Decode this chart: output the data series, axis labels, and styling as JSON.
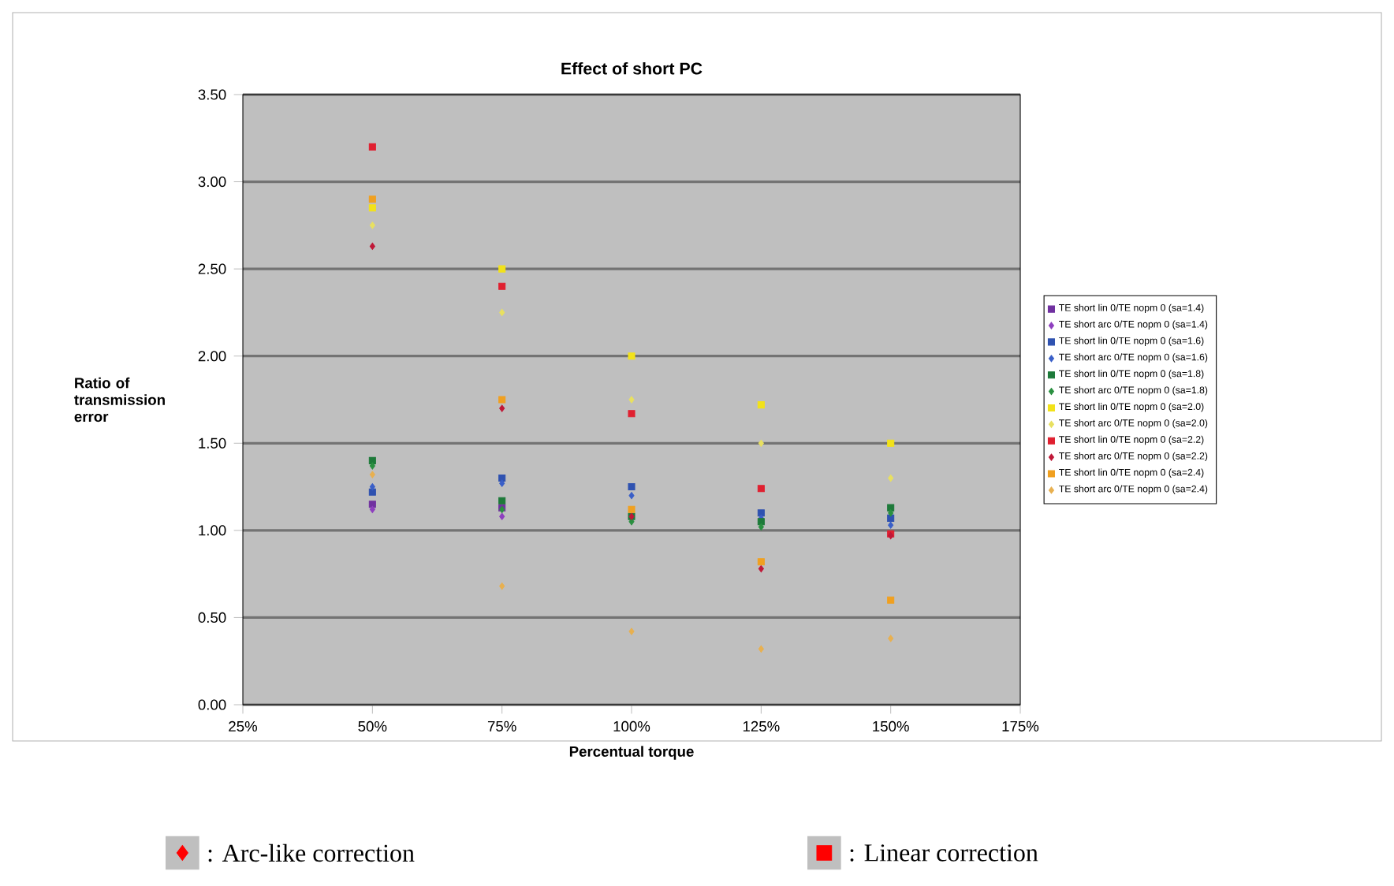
{
  "chart_data": {
    "type": "scatter",
    "title": "Effect of short PC",
    "xlabel": "Percentual torque",
    "ylabel": "Ratio of transmission error",
    "x": [
      50,
      75,
      100,
      125,
      150
    ],
    "xlim": [
      25,
      175
    ],
    "xticks": [
      {
        "value": 25,
        "label": "25%"
      },
      {
        "value": 50,
        "label": "50%"
      },
      {
        "value": 75,
        "label": "75%"
      },
      {
        "value": 100,
        "label": "100%"
      },
      {
        "value": 125,
        "label": "125%"
      },
      {
        "value": 150,
        "label": "150%"
      },
      {
        "value": 175,
        "label": "175%"
      }
    ],
    "ylim": [
      0,
      3.5
    ],
    "yticks": [
      {
        "value": 0,
        "label": "0.00"
      },
      {
        "value": 0.5,
        "label": "0.50"
      },
      {
        "value": 1,
        "label": "1.00"
      },
      {
        "value": 1.5,
        "label": "1.50"
      },
      {
        "value": 2,
        "label": "2.00"
      },
      {
        "value": 2.5,
        "label": "2.50"
      },
      {
        "value": 3,
        "label": "3.00"
      },
      {
        "value": 3.5,
        "label": "3.50"
      }
    ],
    "grid": "y",
    "legend": "right",
    "series": [
      {
        "name": "TE short lin 0/TE nopm 0 (sa=1.4)",
        "color": "#7030a0",
        "marker": "square",
        "values": [
          1.15,
          1.13,
          null,
          null,
          null
        ]
      },
      {
        "name": "TE short arc 0/TE nopm 0 (sa=1.4)",
        "color": "#8e3fbf",
        "marker": "diamond",
        "values": [
          1.12,
          1.08,
          null,
          null,
          null
        ]
      },
      {
        "name": "TE short lin 0/TE nopm 0 (sa=1.6)",
        "color": "#2f52b0",
        "marker": "square",
        "values": [
          1.22,
          1.3,
          1.25,
          1.1,
          1.07
        ]
      },
      {
        "name": "TE short arc 0/TE nopm 0 (sa=1.6)",
        "color": "#3a5fc8",
        "marker": "diamond",
        "values": [
          1.25,
          1.27,
          1.2,
          1.07,
          1.03
        ]
      },
      {
        "name": "TE short lin 0/TE nopm 0 (sa=1.8)",
        "color": "#1e7a3a",
        "marker": "square",
        "values": [
          1.4,
          1.17,
          1.08,
          1.05,
          1.13
        ]
      },
      {
        "name": "TE short arc 0/TE nopm 0 (sa=1.8)",
        "color": "#2a9040",
        "marker": "diamond",
        "values": [
          1.37,
          1.12,
          1.05,
          1.02,
          1.1
        ]
      },
      {
        "name": "TE short lin 0/TE nopm 0 (sa=2.0)",
        "color": "#f2e21a",
        "marker": "square",
        "values": [
          2.85,
          2.5,
          2.0,
          1.72,
          1.5
        ]
      },
      {
        "name": "TE short arc 0/TE nopm 0 (sa=2.0)",
        "color": "#e8e060",
        "marker": "diamond",
        "values": [
          2.75,
          2.25,
          1.75,
          1.5,
          1.3
        ]
      },
      {
        "name": "TE short lin 0/TE nopm 0 (sa=2.2)",
        "color": "#e02030",
        "marker": "square",
        "values": [
          3.2,
          2.4,
          1.67,
          1.24,
          0.98
        ]
      },
      {
        "name": "TE short arc 0/TE nopm 0 (sa=2.2)",
        "color": "#c01838",
        "marker": "diamond",
        "values": [
          2.63,
          1.7,
          1.08,
          0.78,
          0.97
        ]
      },
      {
        "name": "TE short lin 0/TE nopm 0 (sa=2.4)",
        "color": "#f0a020",
        "marker": "square",
        "values": [
          2.9,
          1.75,
          1.12,
          0.82,
          0.6
        ]
      },
      {
        "name": "TE short arc 0/TE nopm 0 (sa=2.4)",
        "color": "#e8b050",
        "marker": "diamond",
        "values": [
          1.32,
          0.68,
          0.42,
          0.32,
          0.38
        ]
      }
    ],
    "annotations": [
      ": Arc-like correction",
      ": Linear correction"
    ]
  }
}
